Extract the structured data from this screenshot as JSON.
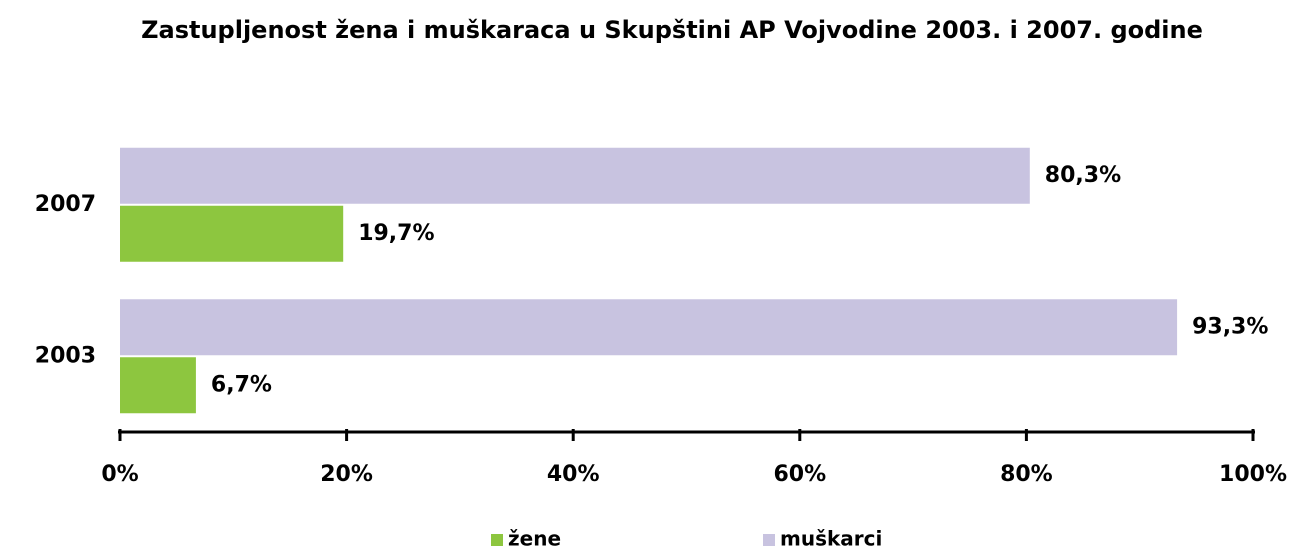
{
  "chart_data": {
    "type": "bar",
    "orientation": "horizontal",
    "title": "Zastupljenost žena i muškaraca u Skupštini AP Vojvodine 2003. i 2007. godine",
    "categories": [
      "2007",
      "2003"
    ],
    "series": [
      {
        "name": "žene",
        "color": "#8dc63f",
        "values": [
          19.7,
          6.7
        ],
        "value_labels": [
          "19,7%",
          "6,7%"
        ]
      },
      {
        "name": "muškarci",
        "color": "#c8c3e0",
        "values": [
          80.3,
          93.3
        ],
        "value_labels": [
          "80,3%",
          "93,3%"
        ]
      }
    ],
    "xlim": [
      0,
      100
    ],
    "xticks": [
      {
        "value": 0,
        "label": "0%"
      },
      {
        "value": 20,
        "label": "20%"
      },
      {
        "value": 40,
        "label": "40%"
      },
      {
        "value": 60,
        "label": "60%"
      },
      {
        "value": 80,
        "label": "80%"
      },
      {
        "value": 100,
        "label": "100%"
      }
    ],
    "legend": "bottom"
  }
}
